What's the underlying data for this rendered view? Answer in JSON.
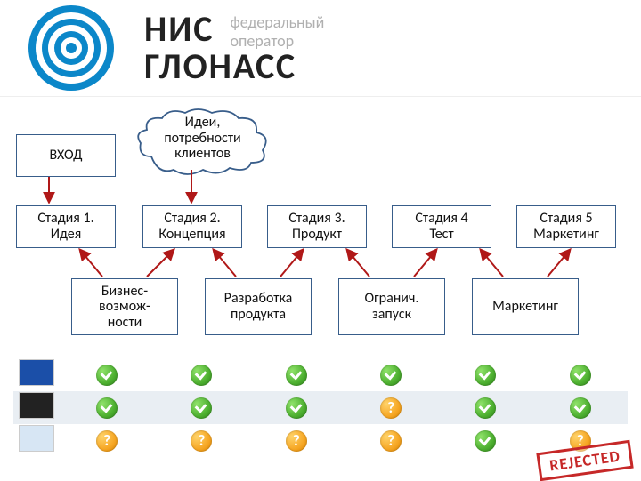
{
  "brand": {
    "line1": "НИС",
    "line2": "ГЛОНАСС",
    "sub1": "федеральный",
    "sub2": "оператор",
    "ring_color": "#0b87c9",
    "logo_bg": "#ffffff"
  },
  "cloud": {
    "text": "Идеи,\nпотребности\nклиентов",
    "border": "#385d8a",
    "fill": "#ffffff"
  },
  "entry": {
    "label": "ВХОД"
  },
  "stages": [
    {
      "label": "Стадия 1.\nИдея"
    },
    {
      "label": "Стадия 2.\nКонцепция"
    },
    {
      "label": "Стадия 3.\nПродукт"
    },
    {
      "label": "Стадия 4\nТест"
    },
    {
      "label": "Стадия 5\nМаркетинг"
    }
  ],
  "transitions": [
    {
      "label": "Бизнес-\nвозмож-\nности"
    },
    {
      "label": "Разработка\nпродукта"
    },
    {
      "label": "Огранич.\nзапуск"
    },
    {
      "label": "Маркетинг"
    }
  ],
  "arrows": {
    "stroke": "#b01818",
    "width": 2
  },
  "box": {
    "border": "#385d8a",
    "fill": "#ffffff"
  },
  "matrix": {
    "thumbs": [
      {
        "bg": "#1b4fa8"
      },
      {
        "bg": "#222222"
      },
      {
        "bg": "#d7e6f4"
      }
    ],
    "rows": [
      [
        "check",
        "check",
        "check",
        "check",
        "check",
        "check"
      ],
      [
        "check",
        "check",
        "check",
        "q",
        "check",
        "check"
      ],
      [
        "q",
        "q",
        "q",
        "q",
        "check",
        "q"
      ]
    ],
    "alt_bg": "#e9eef3",
    "check_color": "#4caf2f",
    "q_color": "#f6a623"
  },
  "stamp": {
    "text": "REJECTED",
    "color": "#c62828"
  }
}
